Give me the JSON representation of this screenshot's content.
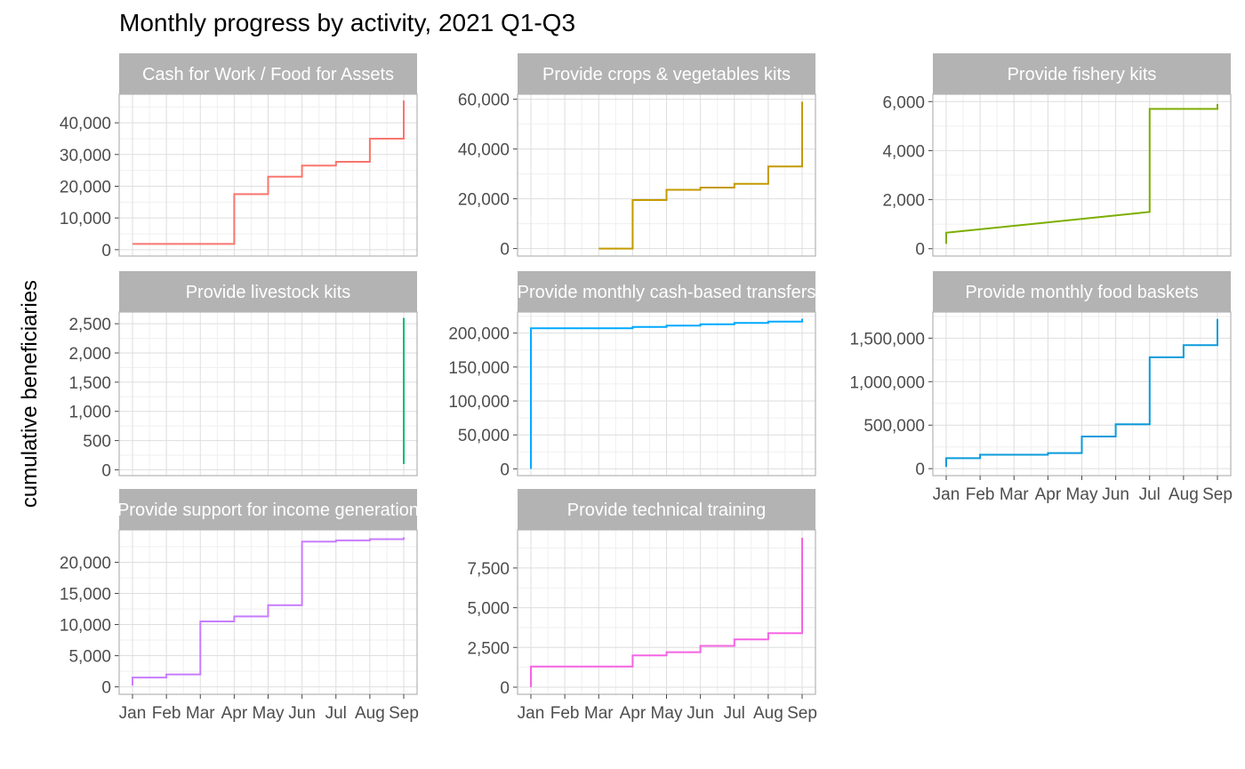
{
  "title": "Monthly progress by activity, 2021 Q1-Q3",
  "ylabel": "cumulative beneficiaries",
  "months": [
    "Jan",
    "Feb",
    "Mar",
    "Apr",
    "May",
    "Jun",
    "Jul",
    "Aug",
    "Sep"
  ],
  "chart_data": [
    {
      "type": "line",
      "step": true,
      "panel": "Cash for Work / Food for Assets",
      "color": "#F8766D",
      "x": [
        "Jan",
        "Feb",
        "Mar",
        "Apr",
        "May",
        "Jun",
        "Jul",
        "Aug",
        "Sep"
      ],
      "y": [
        1800,
        1800,
        1800,
        17500,
        23000,
        26500,
        27700,
        35000,
        47000
      ],
      "yticks": [
        0,
        10000,
        20000,
        30000,
        40000
      ],
      "ytick_labels": [
        "0",
        "10,000",
        "20,000",
        "30,000",
        "40,000"
      ],
      "ylim": [
        -2000,
        49000
      ]
    },
    {
      "type": "line",
      "step": true,
      "panel": "Provide crops & vegetables kits",
      "color": "#C49A00",
      "x": [
        "Mar",
        "Apr",
        "May",
        "Jun",
        "Jul",
        "Aug",
        "Sep"
      ],
      "y": [
        0,
        19500,
        23600,
        24500,
        26000,
        33000,
        45500
      ],
      "final": 59000,
      "yticks": [
        0,
        20000,
        40000,
        60000
      ],
      "ytick_labels": [
        "0",
        "20,000",
        "40,000",
        "60,000"
      ],
      "ylim": [
        -3000,
        62000
      ]
    },
    {
      "type": "line",
      "step": false,
      "panel": "Provide fishery kits",
      "color": "#7CAE00",
      "x": [
        "Jan",
        "Jul",
        "Jul",
        "Sep"
      ],
      "y": [
        650,
        1500,
        5700,
        5700
      ],
      "start": 200,
      "final": 5900,
      "yticks": [
        0,
        2000,
        4000,
        6000
      ],
      "ytick_labels": [
        "0",
        "2,000",
        "4,000",
        "6,000"
      ],
      "ylim": [
        -300,
        6300
      ]
    },
    {
      "type": "line",
      "step": false,
      "panel": "Provide livestock kits",
      "color": "#00BE67",
      "x": [
        "Sep",
        "Sep"
      ],
      "y": [
        100,
        2600
      ],
      "yticks": [
        0,
        500,
        1000,
        1500,
        2000,
        2500
      ],
      "ytick_labels": [
        "0",
        "500",
        "1,000",
        "1,500",
        "2,000",
        "2,500"
      ],
      "ylim": [
        -100,
        2700
      ]
    },
    {
      "type": "line",
      "step": true,
      "panel": "Provide monthly cash-based transfers",
      "color": "#00A9FF",
      "x": [
        "Jan",
        "Feb",
        "Mar",
        "Apr",
        "May",
        "Jun",
        "Jul",
        "Aug",
        "Sep"
      ],
      "y": [
        207000,
        207000,
        207000,
        209000,
        211000,
        213000,
        215000,
        217000,
        219000
      ],
      "start": 0,
      "final": 221000,
      "yticks": [
        0,
        50000,
        100000,
        150000,
        200000
      ],
      "ytick_labels": [
        "0",
        "50,000",
        "100,000",
        "150,000",
        "200,000"
      ],
      "ylim": [
        -10000,
        231000
      ]
    },
    {
      "type": "line",
      "step": true,
      "panel": "Provide monthly food baskets",
      "color": "#0B9BDB",
      "x": [
        "Jan",
        "Feb",
        "Mar",
        "Apr",
        "May",
        "Jun",
        "Jul",
        "Aug",
        "Sep"
      ],
      "y": [
        120000,
        160000,
        160000,
        180000,
        370000,
        510000,
        1280000,
        1420000,
        1430000
      ],
      "start": 20000,
      "final": 1720000,
      "yticks": [
        0,
        500000,
        1000000,
        1500000
      ],
      "ytick_labels": [
        "0",
        "500,000",
        "1,000,000",
        "1,500,000"
      ],
      "ylim": [
        -80000,
        1800000
      ]
    },
    {
      "type": "line",
      "step": true,
      "panel": "Provide support for income generation",
      "color": "#C77CFF",
      "x": [
        "Jan",
        "Feb",
        "Mar",
        "Apr",
        "May",
        "Jun",
        "Jul",
        "Aug",
        "Sep"
      ],
      "y": [
        1500,
        2000,
        10500,
        11300,
        13100,
        23300,
        23500,
        23700,
        24000
      ],
      "start": 200,
      "yticks": [
        0,
        5000,
        10000,
        15000,
        20000
      ],
      "ytick_labels": [
        "0",
        "5,000",
        "10,000",
        "15,000",
        "20,000"
      ],
      "ylim": [
        -1200,
        25200
      ]
    },
    {
      "type": "line",
      "step": true,
      "panel": "Provide technical training",
      "color": "#F564E3",
      "x": [
        "Jan",
        "Feb",
        "Mar",
        "Apr",
        "May",
        "Jun",
        "Jul",
        "Aug",
        "Sep"
      ],
      "y": [
        1300,
        1300,
        1300,
        2000,
        2200,
        2600,
        3000,
        3400,
        3400
      ],
      "start": 0,
      "final": 9400,
      "yticks": [
        0,
        2500,
        5000,
        7500
      ],
      "ytick_labels": [
        "0",
        "2,500",
        "5,000",
        "7,500"
      ],
      "ylim": [
        -450,
        9900
      ]
    }
  ]
}
